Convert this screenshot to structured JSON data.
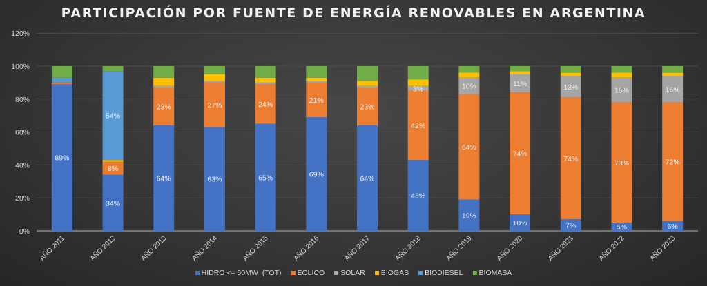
{
  "chart_data": {
    "type": "bar",
    "stacked": true,
    "title": "PARTICIPACIÓN POR FUENTE DE ENERGÍA RENOVABLES EN ARGENTINA",
    "xlabel": "",
    "ylabel": "",
    "ylim": [
      0,
      120
    ],
    "yticks": [
      "0%",
      "20%",
      "40%",
      "60%",
      "80%",
      "100%",
      "120%"
    ],
    "grid": true,
    "legend": "bottom",
    "categories": [
      "AÑO 2011",
      "AÑO 2012",
      "AÑO 2013",
      "AÑO 2014",
      "AÑO 2015",
      "AÑO 2016",
      "AÑO 2017",
      "AÑO 2018",
      "AÑO 2019",
      "AÑO 2020",
      "AÑO 2021",
      "AÑO 2022",
      "AÑO 2023"
    ],
    "series": [
      {
        "name": "HIDRO <= 50MW  (TOT)",
        "color": "#4472C4",
        "values": [
          89,
          34,
          64,
          63,
          65,
          69,
          64,
          43,
          19,
          10,
          7,
          5,
          6
        ],
        "labels": [
          "89%",
          "34%",
          "64%",
          "63%",
          "65%",
          "69%",
          "64%",
          "43%",
          "19%",
          "10%",
          "7%",
          "5%",
          "6%"
        ]
      },
      {
        "name": "EOLICO",
        "color": "#ED7D31",
        "values": [
          1,
          8,
          23,
          27,
          24,
          21,
          23,
          42,
          64,
          74,
          74,
          73,
          72
        ],
        "labels": [
          null,
          "8%",
          "23%",
          "27%",
          "24%",
          "21%",
          "23%",
          "42%",
          "64%",
          "74%",
          "74%",
          "73%",
          "72%"
        ]
      },
      {
        "name": "SOLAR",
        "color": "#A5A5A5",
        "values": [
          0,
          0,
          1,
          1,
          1,
          1,
          1,
          3,
          10,
          11,
          13,
          15,
          16
        ],
        "labels": [
          null,
          null,
          null,
          null,
          null,
          null,
          null,
          "3%",
          "10%",
          "11%",
          "13%",
          "15%",
          "16%"
        ]
      },
      {
        "name": "BIOGAS",
        "color": "#FFC000",
        "values": [
          0,
          1,
          5,
          4,
          3,
          2,
          3,
          4,
          3,
          2,
          2,
          3,
          2
        ],
        "labels": [
          null,
          null,
          null,
          null,
          null,
          null,
          null,
          null,
          null,
          null,
          null,
          null,
          null
        ]
      },
      {
        "name": "BIODIESEL",
        "color": "#5B9BD5",
        "values": [
          3,
          54,
          0,
          0,
          0,
          0,
          0,
          0,
          0,
          0,
          0,
          0,
          0
        ],
        "labels": [
          null,
          "54%",
          null,
          null,
          null,
          null,
          null,
          null,
          null,
          null,
          null,
          null,
          null
        ]
      },
      {
        "name": "BIOMASA",
        "color": "#70AD47",
        "values": [
          7,
          3,
          7,
          5,
          7,
          7,
          9,
          8,
          4,
          3,
          4,
          4,
          4
        ],
        "labels": [
          null,
          null,
          null,
          null,
          null,
          null,
          null,
          null,
          null,
          null,
          null,
          null,
          null
        ]
      }
    ]
  }
}
